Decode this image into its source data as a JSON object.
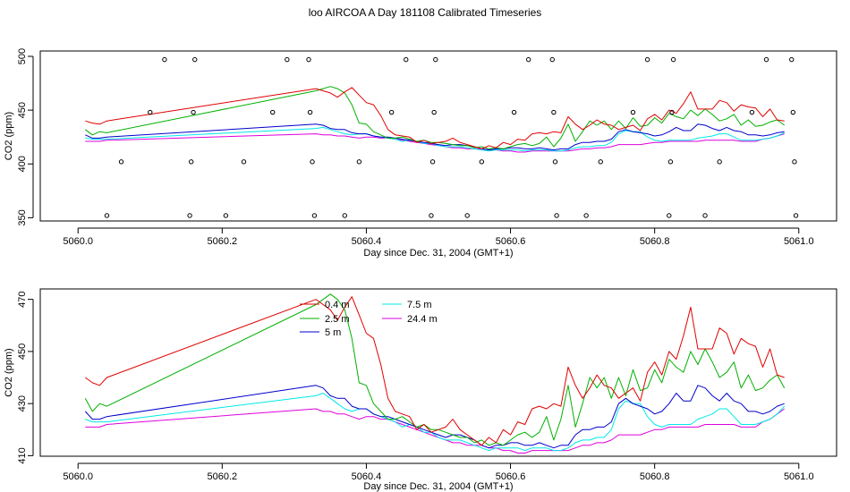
{
  "title": "loo AIRCOA A  Day 181108  Calibrated Timeseries",
  "colors": {
    "0.4 m": "#e00000",
    "2.5 m": "#00b000",
    "5 m": "#0000cc",
    "7.5 m": "#00e8e8",
    "24.4 m": "#dd00dd"
  },
  "chart_data": [
    {
      "type": "line",
      "xlabel": "Day since Dec. 31, 2004 (GMT+1)",
      "ylabel": "CO2 (ppm)",
      "xlim": [
        5059.96,
        5061.04
      ],
      "ylim": [
        347,
        505
      ],
      "xticks": [
        5060.0,
        5060.2,
        5060.4,
        5060.6,
        5060.8,
        5061.0
      ],
      "xtick_labels": [
        "5060.0",
        "5060.2",
        "5060.4",
        "5060.6",
        "5060.8",
        "5061.0"
      ],
      "yticks": [
        350,
        400,
        450,
        500
      ],
      "ytick_labels": [
        "350",
        "400",
        "450",
        "500"
      ],
      "legend": false,
      "points": [
        {
          "x": 5060.04,
          "y": 352
        },
        {
          "x": 5060.06,
          "y": 402
        },
        {
          "x": 5060.1,
          "y": 448
        },
        {
          "x": 5060.12,
          "y": 497
        },
        {
          "x": 5060.155,
          "y": 352
        },
        {
          "x": 5060.157,
          "y": 402
        },
        {
          "x": 5060.16,
          "y": 448
        },
        {
          "x": 5060.162,
          "y": 497
        },
        {
          "x": 5060.205,
          "y": 352
        },
        {
          "x": 5060.23,
          "y": 402
        },
        {
          "x": 5060.27,
          "y": 448
        },
        {
          "x": 5060.29,
          "y": 497
        },
        {
          "x": 5060.32,
          "y": 497
        },
        {
          "x": 5060.322,
          "y": 448
        },
        {
          "x": 5060.325,
          "y": 402
        },
        {
          "x": 5060.328,
          "y": 352
        },
        {
          "x": 5060.37,
          "y": 352
        },
        {
          "x": 5060.39,
          "y": 402
        },
        {
          "x": 5060.435,
          "y": 448
        },
        {
          "x": 5060.455,
          "y": 497
        },
        {
          "x": 5060.49,
          "y": 352
        },
        {
          "x": 5060.492,
          "y": 402
        },
        {
          "x": 5060.494,
          "y": 448
        },
        {
          "x": 5060.496,
          "y": 497
        },
        {
          "x": 5060.54,
          "y": 352
        },
        {
          "x": 5060.56,
          "y": 402
        },
        {
          "x": 5060.605,
          "y": 448
        },
        {
          "x": 5060.625,
          "y": 497
        },
        {
          "x": 5060.658,
          "y": 497
        },
        {
          "x": 5060.66,
          "y": 448
        },
        {
          "x": 5060.662,
          "y": 402
        },
        {
          "x": 5060.664,
          "y": 352
        },
        {
          "x": 5060.705,
          "y": 352
        },
        {
          "x": 5060.725,
          "y": 402
        },
        {
          "x": 5060.77,
          "y": 448
        },
        {
          "x": 5060.79,
          "y": 497
        },
        {
          "x": 5060.82,
          "y": 352
        },
        {
          "x": 5060.822,
          "y": 402
        },
        {
          "x": 5060.824,
          "y": 448
        },
        {
          "x": 5060.826,
          "y": 497
        },
        {
          "x": 5060.87,
          "y": 352
        },
        {
          "x": 5060.89,
          "y": 402
        },
        {
          "x": 5060.935,
          "y": 448
        },
        {
          "x": 5060.955,
          "y": 497
        },
        {
          "x": 5060.99,
          "y": 497
        },
        {
          "x": 5060.992,
          "y": 448
        },
        {
          "x": 5060.994,
          "y": 402
        },
        {
          "x": 5060.996,
          "y": 352
        }
      ],
      "x": [
        5060.01,
        5060.02,
        5060.03,
        5060.04,
        5060.33,
        5060.34,
        5060.35,
        5060.36,
        5060.37,
        5060.38,
        5060.39,
        5060.4,
        5060.41,
        5060.42,
        5060.43,
        5060.44,
        5060.45,
        5060.46,
        5060.47,
        5060.48,
        5060.49,
        5060.5,
        5060.51,
        5060.52,
        5060.53,
        5060.54,
        5060.55,
        5060.56,
        5060.57,
        5060.58,
        5060.59,
        5060.6,
        5060.61,
        5060.62,
        5060.63,
        5060.64,
        5060.65,
        5060.66,
        5060.67,
        5060.68,
        5060.69,
        5060.7,
        5060.71,
        5060.72,
        5060.73,
        5060.74,
        5060.75,
        5060.76,
        5060.77,
        5060.78,
        5060.79,
        5060.8,
        5060.81,
        5060.82,
        5060.83,
        5060.84,
        5060.85,
        5060.86,
        5060.87,
        5060.88,
        5060.89,
        5060.9,
        5060.91,
        5060.92,
        5060.93,
        5060.94,
        5060.95,
        5060.96,
        5060.97,
        5060.98
      ],
      "series": [
        {
          "name": "0.4 m",
          "values": [
            440,
            438,
            437,
            440,
            470,
            468,
            466,
            462,
            467,
            471,
            464,
            457,
            455,
            445,
            432,
            427,
            426,
            425,
            420,
            422,
            419,
            420,
            421,
            424,
            420,
            418,
            416,
            414,
            417,
            415,
            420,
            418,
            423,
            422,
            428,
            429,
            428,
            430,
            429,
            444,
            437,
            432,
            436,
            441,
            437,
            436,
            432,
            434,
            436,
            431,
            442,
            446,
            441,
            450,
            447,
            456,
            467,
            451,
            451,
            451,
            459,
            457,
            449,
            455,
            453,
            452,
            444,
            451,
            441,
            440
          ]
        },
        {
          "name": "2.5 m",
          "values": [
            432,
            427,
            430,
            429,
            468,
            470,
            472,
            470,
            466,
            455,
            438,
            437,
            430,
            427,
            424,
            424,
            425,
            423,
            421,
            422,
            420,
            420,
            419,
            418,
            417,
            417,
            415,
            416,
            414,
            415,
            414,
            416,
            418,
            419,
            417,
            419,
            425,
            416,
            424,
            437,
            421,
            430,
            440,
            436,
            440,
            432,
            440,
            433,
            443,
            435,
            436,
            443,
            438,
            447,
            444,
            442,
            450,
            445,
            451,
            446,
            440,
            442,
            446,
            436,
            441,
            435,
            436,
            439,
            441,
            436
          ]
        },
        {
          "name": "5 m",
          "values": [
            427,
            424,
            424,
            425,
            437,
            436,
            433,
            432,
            432,
            429,
            428,
            428,
            426,
            425,
            425,
            424,
            423,
            422,
            421,
            420,
            419,
            418,
            417,
            418,
            418,
            417,
            416,
            414,
            413,
            414,
            414,
            415,
            415,
            414,
            414,
            415,
            414,
            413,
            414,
            414,
            418,
            420,
            420,
            421,
            421,
            423,
            430,
            432,
            430,
            429,
            428,
            426,
            427,
            430,
            434,
            431,
            431,
            437,
            436,
            433,
            431,
            434,
            431,
            430,
            427,
            427,
            426,
            427,
            429,
            430
          ]
        },
        {
          "name": "7.5 m",
          "values": [
            424,
            423,
            423,
            423,
            433,
            434,
            432,
            430,
            428,
            427,
            428,
            428,
            426,
            425,
            424,
            423,
            421,
            422,
            421,
            419,
            419,
            417,
            416,
            416,
            416,
            415,
            414,
            413,
            412,
            413,
            413,
            413,
            413,
            412,
            413,
            413,
            413,
            412,
            412,
            413,
            415,
            416,
            416,
            417,
            417,
            420,
            428,
            431,
            430,
            430,
            425,
            422,
            421,
            422,
            422,
            422,
            422,
            424,
            425,
            426,
            428,
            428,
            425,
            422,
            422,
            422,
            423,
            424,
            426,
            429
          ]
        },
        {
          "name": "24.4 m",
          "values": [
            421,
            421,
            421,
            422,
            428,
            427,
            427,
            426,
            426,
            425,
            424,
            425,
            425,
            424,
            424,
            423,
            422,
            421,
            420,
            419,
            418,
            417,
            416,
            415,
            415,
            414,
            414,
            414,
            413,
            413,
            412,
            412,
            411,
            411,
            412,
            412,
            412,
            412,
            412,
            412,
            413,
            414,
            414,
            415,
            415,
            416,
            418,
            418,
            418,
            418,
            419,
            420,
            420,
            421,
            421,
            421,
            421,
            421,
            422,
            422,
            422,
            422,
            422,
            421,
            421,
            421,
            423,
            424,
            426,
            428
          ]
        }
      ]
    },
    {
      "type": "line",
      "xlabel": "Day since Dec. 31, 2004 (GMT+1)",
      "ylabel": "CO2 (ppm)",
      "xlim": [
        5059.96,
        5061.04
      ],
      "ylim": [
        409.8,
        474
      ],
      "xticks": [
        5060.0,
        5060.2,
        5060.4,
        5060.6,
        5060.8,
        5061.0
      ],
      "xtick_labels": [
        "5060.0",
        "5060.2",
        "5060.4",
        "5060.6",
        "5060.8",
        "5061.0"
      ],
      "yticks": [
        410,
        430,
        450,
        470
      ],
      "ytick_labels": [
        "410",
        "430",
        "450",
        "470"
      ],
      "legend": true,
      "legend_entries": [
        "0.4 m",
        "2.5 m",
        "5 m",
        "7.5 m",
        "24.4 m"
      ],
      "x": [
        5060.01,
        5060.02,
        5060.03,
        5060.04,
        5060.33,
        5060.34,
        5060.35,
        5060.36,
        5060.37,
        5060.38,
        5060.39,
        5060.4,
        5060.41,
        5060.42,
        5060.43,
        5060.44,
        5060.45,
        5060.46,
        5060.47,
        5060.48,
        5060.49,
        5060.5,
        5060.51,
        5060.52,
        5060.53,
        5060.54,
        5060.55,
        5060.56,
        5060.57,
        5060.58,
        5060.59,
        5060.6,
        5060.61,
        5060.62,
        5060.63,
        5060.64,
        5060.65,
        5060.66,
        5060.67,
        5060.68,
        5060.69,
        5060.7,
        5060.71,
        5060.72,
        5060.73,
        5060.74,
        5060.75,
        5060.76,
        5060.77,
        5060.78,
        5060.79,
        5060.8,
        5060.81,
        5060.82,
        5060.83,
        5060.84,
        5060.85,
        5060.86,
        5060.87,
        5060.88,
        5060.89,
        5060.9,
        5060.91,
        5060.92,
        5060.93,
        5060.94,
        5060.95,
        5060.96,
        5060.97,
        5060.98
      ],
      "series": [
        {
          "name": "0.4 m",
          "values": [
            440,
            438,
            437,
            440,
            470,
            468,
            466,
            462,
            467,
            471,
            464,
            457,
            455,
            445,
            432,
            427,
            426,
            425,
            420,
            422,
            419,
            420,
            421,
            424,
            420,
            418,
            416,
            414,
            417,
            415,
            420,
            418,
            423,
            422,
            428,
            429,
            428,
            430,
            429,
            444,
            437,
            432,
            436,
            441,
            437,
            436,
            432,
            434,
            436,
            431,
            442,
            446,
            441,
            450,
            447,
            456,
            467,
            451,
            451,
            451,
            459,
            457,
            449,
            455,
            453,
            452,
            444,
            451,
            441,
            440
          ]
        },
        {
          "name": "2.5 m",
          "values": [
            432,
            427,
            430,
            429,
            468,
            470,
            472,
            470,
            466,
            455,
            438,
            437,
            430,
            427,
            424,
            424,
            425,
            423,
            421,
            422,
            420,
            420,
            419,
            418,
            417,
            417,
            415,
            416,
            414,
            415,
            414,
            416,
            418,
            419,
            417,
            419,
            425,
            416,
            424,
            437,
            421,
            430,
            440,
            436,
            440,
            432,
            440,
            433,
            443,
            435,
            436,
            443,
            438,
            447,
            444,
            442,
            450,
            445,
            451,
            446,
            440,
            442,
            446,
            436,
            441,
            435,
            436,
            439,
            441,
            436
          ]
        },
        {
          "name": "5 m",
          "values": [
            427,
            424,
            424,
            425,
            437,
            436,
            433,
            432,
            432,
            429,
            428,
            428,
            426,
            425,
            425,
            424,
            423,
            422,
            421,
            420,
            419,
            418,
            417,
            418,
            418,
            417,
            416,
            414,
            413,
            414,
            414,
            415,
            415,
            414,
            414,
            415,
            414,
            413,
            414,
            414,
            418,
            420,
            420,
            421,
            421,
            423,
            430,
            432,
            430,
            429,
            428,
            426,
            427,
            430,
            434,
            431,
            431,
            437,
            436,
            433,
            431,
            434,
            431,
            430,
            427,
            427,
            426,
            427,
            429,
            430
          ]
        },
        {
          "name": "7.5 m",
          "values": [
            424,
            423,
            423,
            423,
            433,
            434,
            432,
            430,
            428,
            427,
            428,
            428,
            426,
            425,
            424,
            423,
            421,
            422,
            421,
            419,
            419,
            417,
            416,
            416,
            416,
            415,
            414,
            413,
            412,
            413,
            413,
            413,
            413,
            412,
            413,
            413,
            413,
            412,
            412,
            413,
            415,
            416,
            416,
            417,
            417,
            420,
            428,
            431,
            430,
            430,
            425,
            422,
            421,
            422,
            422,
            422,
            422,
            424,
            425,
            426,
            428,
            428,
            425,
            422,
            422,
            422,
            423,
            424,
            426,
            429
          ]
        },
        {
          "name": "24.4 m",
          "values": [
            421,
            421,
            421,
            422,
            428,
            427,
            427,
            426,
            426,
            425,
            424,
            425,
            425,
            424,
            424,
            423,
            422,
            421,
            420,
            419,
            418,
            417,
            416,
            415,
            415,
            414,
            414,
            414,
            413,
            413,
            412,
            412,
            411,
            411,
            412,
            412,
            412,
            412,
            412,
            412,
            413,
            414,
            414,
            415,
            415,
            416,
            418,
            418,
            418,
            418,
            419,
            420,
            420,
            421,
            421,
            421,
            421,
            421,
            422,
            422,
            422,
            422,
            422,
            421,
            421,
            421,
            423,
            424,
            426,
            428
          ]
        }
      ]
    }
  ]
}
